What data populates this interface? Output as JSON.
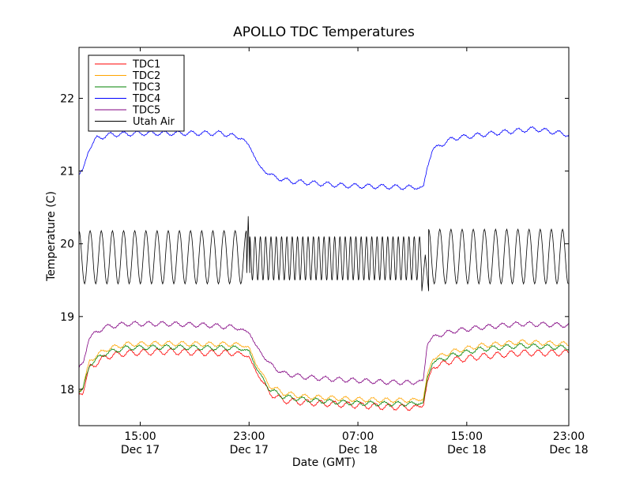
{
  "chart_data": {
    "type": "line",
    "title": "APOLLO TDC Temperatures",
    "xlabel": "Date (GMT)",
    "ylabel": "Temperature (C)",
    "xlim": [
      10.5,
      46.5
    ],
    "ylim": [
      17.5,
      22.7
    ],
    "grid": false,
    "legend_position": "top-left",
    "x_ticks": [
      {
        "x": 15,
        "time": "15:00",
        "date": "Dec 17"
      },
      {
        "x": 23,
        "time": "23:00",
        "date": "Dec 17"
      },
      {
        "x": 31,
        "time": "07:00",
        "date": "Dec 18"
      },
      {
        "x": 39,
        "time": "15:00",
        "date": "Dec 18"
      },
      {
        "x": 47,
        "time": "23:00",
        "date": "Dec 18"
      }
    ],
    "y_ticks": [
      {
        "y": 18,
        "label": "18"
      },
      {
        "y": 19,
        "label": "19"
      },
      {
        "y": 20,
        "label": "20"
      },
      {
        "y": 21,
        "label": "21"
      },
      {
        "y": 22,
        "label": "22"
      }
    ],
    "x_units": "hours since Dec 17 00:00 GMT",
    "series": [
      {
        "name": "TDC1",
        "color": "#ff0000",
        "kind": "tdc",
        "x": [
          10.5,
          10.8,
          11.3,
          12.5,
          14,
          17,
          20,
          22,
          23,
          23.5,
          24.5,
          25.5,
          27,
          29,
          31,
          33,
          35,
          35.8,
          36.1,
          36.5,
          38,
          40,
          43,
          46.5
        ],
        "y": [
          17.95,
          17.98,
          18.3,
          18.45,
          18.5,
          18.52,
          18.5,
          18.5,
          18.45,
          18.25,
          17.95,
          17.85,
          17.82,
          17.8,
          17.78,
          17.76,
          17.75,
          17.77,
          18.1,
          18.3,
          18.4,
          18.45,
          18.5,
          18.5
        ],
        "osc_amp": 0.04,
        "osc_period": 1.0
      },
      {
        "name": "TDC2",
        "color": "#ffa500",
        "kind": "tdc",
        "x": [
          10.5,
          10.8,
          11.3,
          12.5,
          14,
          17,
          20,
          22,
          23,
          23.5,
          24.5,
          25.5,
          27,
          29,
          31,
          33,
          35,
          35.8,
          36.1,
          36.5,
          38,
          40,
          43,
          46.5
        ],
        "y": [
          18.0,
          18.03,
          18.4,
          18.55,
          18.62,
          18.63,
          18.62,
          18.62,
          18.58,
          18.35,
          18.05,
          17.95,
          17.9,
          17.88,
          17.86,
          17.85,
          17.85,
          17.86,
          18.2,
          18.42,
          18.52,
          18.6,
          18.65,
          18.62
        ],
        "osc_amp": 0.03,
        "osc_period": 1.0
      },
      {
        "name": "TDC3",
        "color": "#008000",
        "kind": "tdc",
        "x": [
          10.5,
          10.8,
          11.3,
          12.5,
          14,
          17,
          20,
          22,
          23,
          23.5,
          24.5,
          25.5,
          27,
          29,
          31,
          33,
          35,
          35.8,
          36.1,
          36.5,
          38,
          40,
          43,
          46.5
        ],
        "y": [
          17.98,
          18.0,
          18.35,
          18.5,
          18.57,
          18.58,
          18.57,
          18.57,
          18.53,
          18.3,
          18.0,
          17.9,
          17.86,
          17.83,
          17.81,
          17.8,
          17.8,
          17.81,
          18.15,
          18.37,
          18.47,
          18.55,
          18.6,
          18.57
        ],
        "osc_amp": 0.03,
        "osc_period": 1.0
      },
      {
        "name": "TDC4",
        "color": "#0000ff",
        "kind": "tdc",
        "x": [
          10.5,
          10.8,
          11.2,
          11.8,
          12.8,
          15,
          18,
          21,
          22.5,
          23,
          23.8,
          24.8,
          26,
          28,
          30,
          32,
          34,
          35.5,
          35.8,
          36.1,
          36.5,
          38,
          41,
          44,
          46.5
        ],
        "y": [
          20.95,
          21.0,
          21.3,
          21.45,
          21.5,
          21.52,
          21.52,
          21.52,
          21.45,
          21.35,
          21.05,
          20.92,
          20.86,
          20.83,
          20.8,
          20.79,
          20.78,
          20.77,
          20.78,
          21.05,
          21.3,
          21.45,
          21.52,
          21.58,
          21.5
        ],
        "osc_amp": 0.03,
        "osc_period": 1.0
      },
      {
        "name": "TDC5",
        "color": "#800080",
        "kind": "tdc",
        "x": [
          10.5,
          10.8,
          11.2,
          12.3,
          14,
          17,
          20,
          22,
          23,
          23.5,
          24.5,
          25.5,
          27,
          29,
          31,
          33,
          35,
          35.8,
          36.1,
          36.5,
          38,
          40,
          43,
          46.5
        ],
        "y": [
          18.28,
          18.35,
          18.7,
          18.85,
          18.9,
          18.9,
          18.88,
          18.85,
          18.78,
          18.6,
          18.35,
          18.22,
          18.17,
          18.14,
          18.12,
          18.1,
          18.09,
          18.12,
          18.62,
          18.72,
          18.8,
          18.85,
          18.9,
          18.88
        ],
        "osc_amp": 0.03,
        "osc_period": 1.0
      },
      {
        "name": "Utah Air",
        "color": "#000000",
        "kind": "osc",
        "segments": [
          {
            "from": 10.5,
            "to": 22.83,
            "period": 0.82,
            "hi": 20.18,
            "lo": 19.45
          },
          {
            "from": 22.83,
            "to": 23.05,
            "period": 0,
            "hi": 20.38,
            "lo": 19.6
          },
          {
            "from": 23.05,
            "to": 35.7,
            "period": 0.39,
            "hi": 20.1,
            "lo": 19.5
          },
          {
            "from": 35.7,
            "to": 36.2,
            "period": 0,
            "hi": 19.85,
            "lo": 19.35
          },
          {
            "from": 36.2,
            "to": 46.5,
            "period": 0.82,
            "hi": 20.2,
            "lo": 19.45
          }
        ]
      }
    ]
  }
}
